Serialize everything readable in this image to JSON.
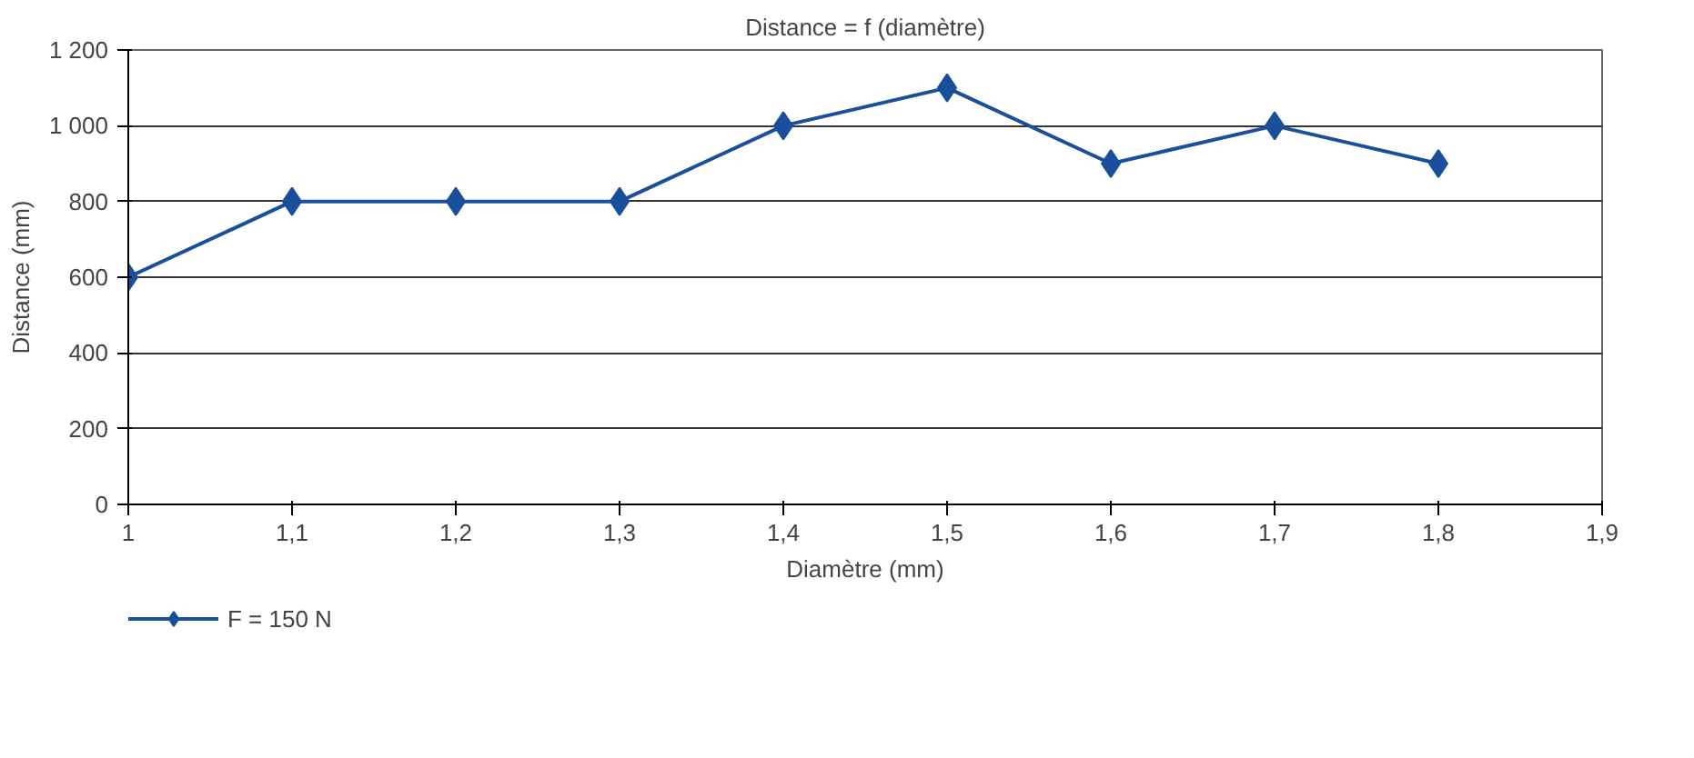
{
  "chart_data": {
    "type": "line",
    "title": "Distance = f (diamètre)",
    "xlabel": "Diamètre (mm)",
    "ylabel": "Distance (mm)",
    "x": [
      1,
      1.1,
      1.2,
      1.3,
      1.4,
      1.5,
      1.6,
      1.7,
      1.8
    ],
    "series": [
      {
        "name": "F = 150 N",
        "color": "#1a4f9c",
        "values": [
          600,
          800,
          800,
          800,
          1000,
          1100,
          900,
          1000,
          900
        ]
      }
    ],
    "xlim": [
      1,
      1.9
    ],
    "xticks": [
      1,
      {
        "value": 1.1,
        "label": "1,1"
      },
      {
        "value": 1.2,
        "label": "1,2"
      },
      {
        "value": 1.3,
        "label": "1,3"
      },
      {
        "value": 1.4,
        "label": "1,4"
      },
      {
        "value": 1.5,
        "label": "1,5"
      },
      {
        "value": 1.6,
        "label": "1,6"
      },
      {
        "value": 1.7,
        "label": "1,7"
      },
      {
        "value": 1.8,
        "label": "1,8"
      },
      {
        "value": 1.9,
        "label": "1,9"
      }
    ],
    "ylim": [
      0,
      1200
    ],
    "yticks": [
      0,
      200,
      400,
      600,
      800,
      {
        "value": 1000,
        "label": "1 000"
      },
      {
        "value": 1200,
        "label": "1 200"
      }
    ],
    "grid": "y",
    "legend": "bottom left",
    "marker": "diamond",
    "line_style": "solid"
  }
}
